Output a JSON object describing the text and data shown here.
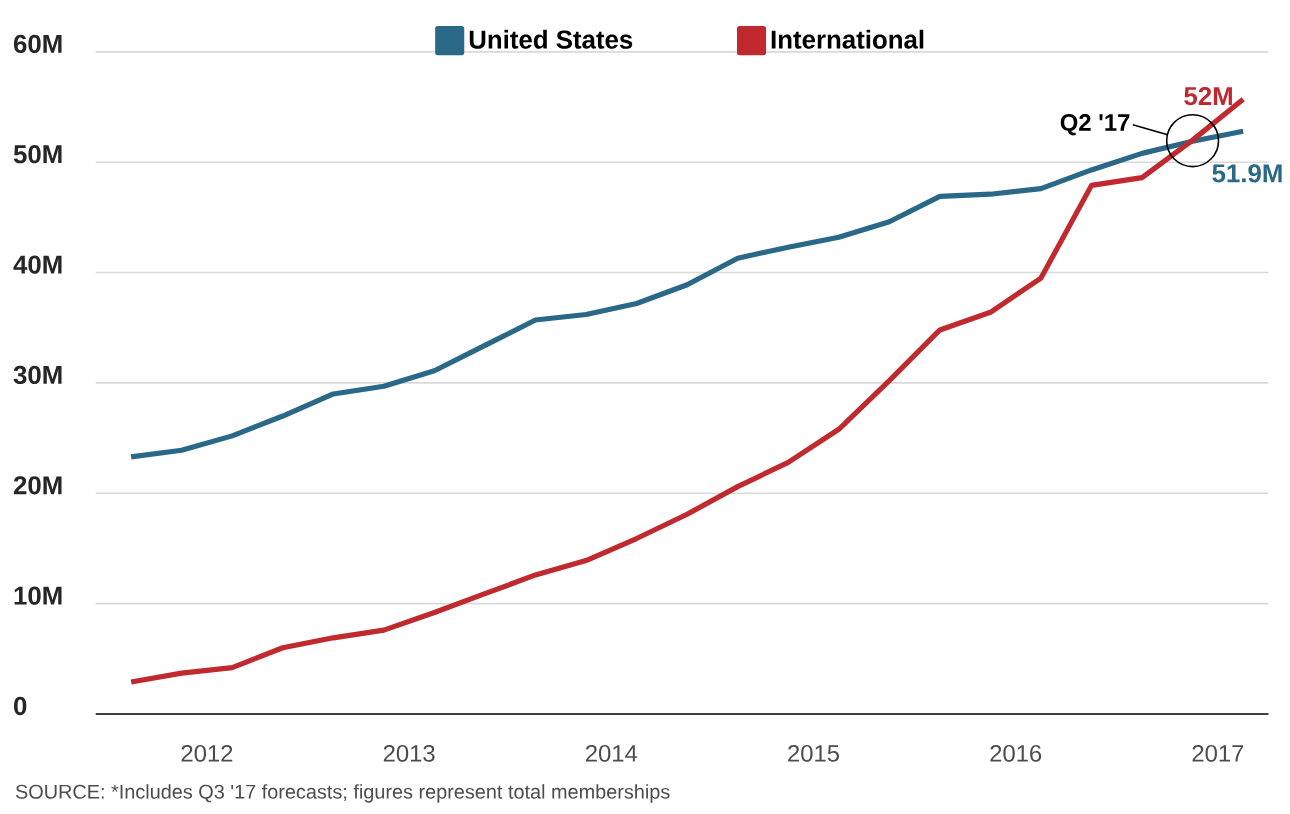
{
  "chart_data": {
    "type": "line",
    "x": [
      2012.125,
      2012.375,
      2012.625,
      2012.875,
      2013.125,
      2013.375,
      2013.625,
      2013.875,
      2014.125,
      2014.375,
      2014.625,
      2014.875,
      2015.125,
      2015.375,
      2015.625,
      2015.875,
      2016.125,
      2016.375,
      2016.625,
      2016.875,
      2017.125,
      2017.375,
      2017.625
    ],
    "series": [
      {
        "name": "United States",
        "color": "#2a6887",
        "values": [
          23.3,
          23.9,
          25.2,
          27.0,
          29.0,
          29.7,
          31.1,
          33.4,
          35.7,
          36.2,
          37.2,
          38.9,
          41.3,
          42.3,
          43.2,
          44.6,
          46.9,
          47.1,
          47.6,
          49.3,
          50.8,
          51.9,
          52.8
        ],
        "value_labels": [
          null,
          null,
          null,
          null,
          null,
          null,
          null,
          null,
          null,
          null,
          null,
          null,
          null,
          null,
          null,
          null,
          null,
          null,
          null,
          null,
          null,
          "51.9M",
          null
        ]
      },
      {
        "name": "International",
        "color": "#c0292e",
        "values": [
          2.9,
          3.7,
          4.2,
          6.0,
          6.9,
          7.6,
          9.2,
          10.9,
          12.6,
          13.9,
          15.9,
          18.1,
          20.6,
          22.8,
          25.8,
          30.2,
          34.8,
          36.4,
          39.5,
          47.9,
          48.6,
          52.0,
          55.7
        ],
        "value_labels": [
          null,
          null,
          null,
          null,
          null,
          null,
          null,
          null,
          null,
          null,
          null,
          null,
          null,
          null,
          null,
          null,
          null,
          null,
          null,
          null,
          null,
          "52M",
          null
        ]
      }
    ],
    "xlim": [
      2011.95,
      2017.75
    ],
    "xticks": [
      {
        "value": 2012.5,
        "label": "2012"
      },
      {
        "value": 2013.5,
        "label": "2013"
      },
      {
        "value": 2014.5,
        "label": "2014"
      },
      {
        "value": 2015.5,
        "label": "2015"
      },
      {
        "value": 2016.5,
        "label": "2016"
      },
      {
        "value": 2017.5,
        "label": "2017"
      }
    ],
    "ylim": [
      0,
      60
    ],
    "yticks": [
      0,
      {
        "value": 10,
        "label": "10M"
      },
      {
        "value": 20,
        "label": "20M"
      },
      {
        "value": 30,
        "label": "30M"
      },
      {
        "value": 40,
        "label": "40M"
      },
      {
        "value": 50,
        "label": "50M"
      },
      {
        "value": 60,
        "label": "60M"
      }
    ],
    "grid": "y",
    "legend": "top",
    "line_style": "solid",
    "marker": "none",
    "annotations": [
      {
        "text": "Q2 '17",
        "x": 2017.375,
        "y": 51.95
      },
      "SOURCE: *Includes Q3 '17 forecasts; figures represent total memberships"
    ]
  }
}
